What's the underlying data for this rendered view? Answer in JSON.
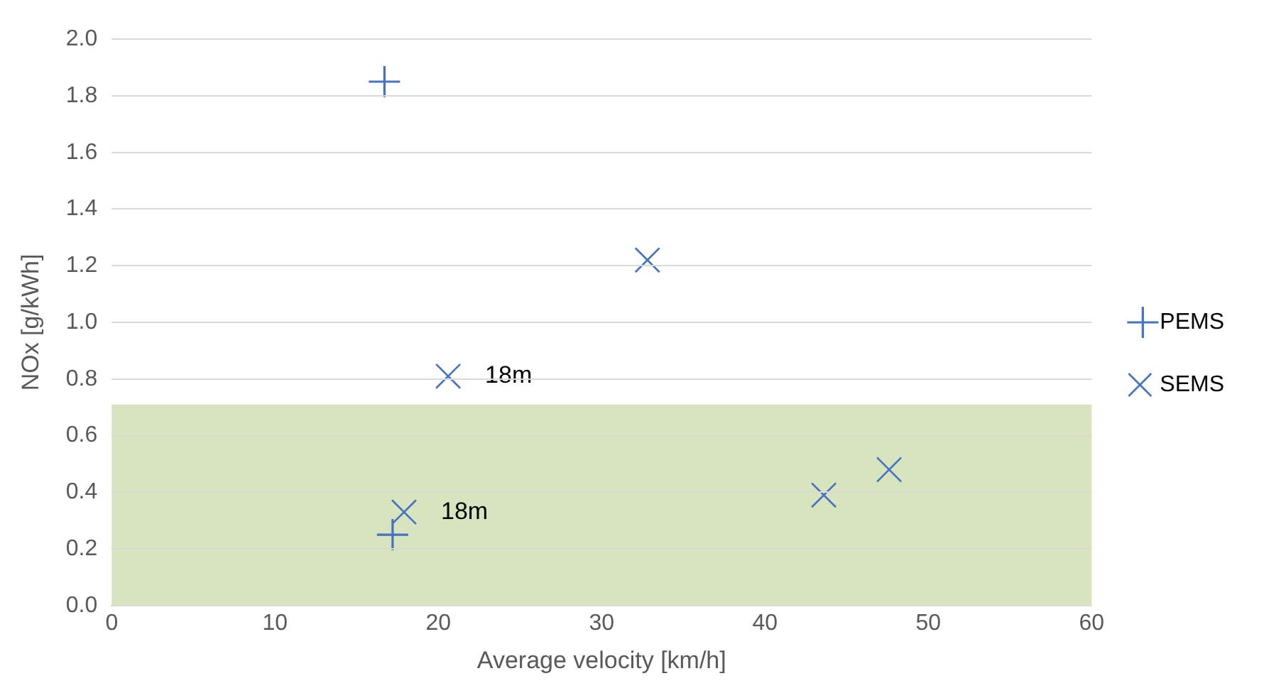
{
  "chart_data": {
    "type": "scatter",
    "xlabel": "Average velocity [km/h]",
    "ylabel": "NOx [g/kWh]",
    "xlim": [
      0,
      60
    ],
    "xticks": [
      0,
      10,
      20,
      30,
      40,
      50,
      60
    ],
    "ylim": [
      0,
      2
    ],
    "yticks": [
      {
        "value": 0,
        "label": "0.0"
      },
      {
        "value": 0.2,
        "label": "0.2"
      },
      {
        "value": 0.4,
        "label": "0.4"
      },
      {
        "value": 0.6,
        "label": "0.6"
      },
      {
        "value": 0.8,
        "label": "0.8"
      },
      {
        "value": 1,
        "label": "1.0"
      },
      {
        "value": 1.2,
        "label": "1.2"
      },
      {
        "value": 1.4,
        "label": "1.4"
      },
      {
        "value": 1.6,
        "label": "1.6"
      },
      {
        "value": 1.8,
        "label": "1.8"
      },
      {
        "value": 2,
        "label": "2.0"
      }
    ],
    "grid": "y",
    "legend": "right",
    "series": [
      {
        "name": "PEMS",
        "color": "#4472c4",
        "x": [
          16.7,
          17.2
        ],
        "values": [
          1.85,
          0.25
        ]
      },
      {
        "name": "SEMS",
        "color": "#4472c4",
        "marker": "cross",
        "x": [
          20.6,
          17.9,
          32.8,
          43.6,
          47.6
        ],
        "values": [
          0.81,
          0.33,
          1.22,
          0.39,
          0.48
        ]
      }
    ],
    "bands": [
      {
        "axis": "y",
        "from": 0,
        "to": 0.71,
        "color": "#d7e4bd"
      }
    ],
    "annotations": [
      {
        "text": "18m",
        "x": 20.6,
        "y": 0.81
      },
      {
        "text": "18m",
        "x": 17.9,
        "y": 0.33
      }
    ]
  }
}
